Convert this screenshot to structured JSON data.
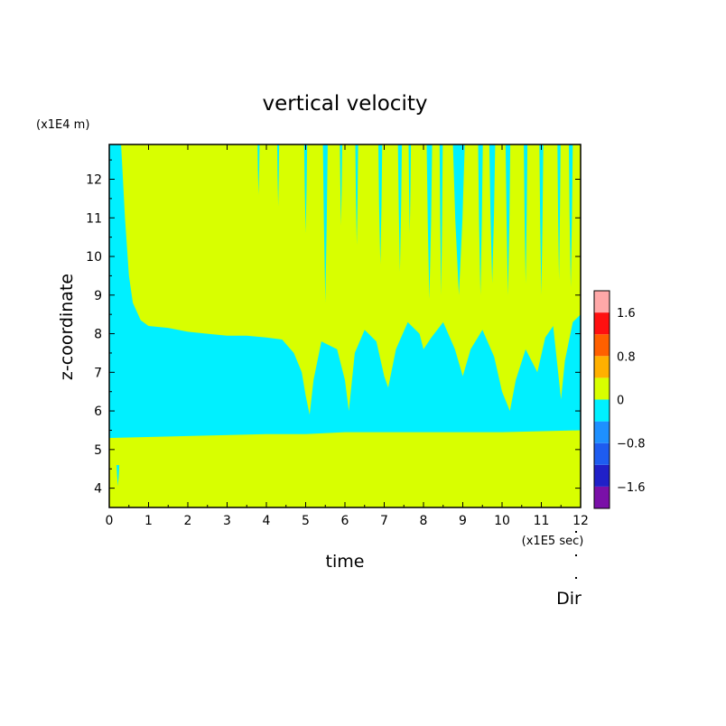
{
  "chart_data": {
    "type": "heatmap",
    "title": "vertical velocity",
    "xlabel": "time",
    "ylabel": "z-coordinate",
    "x_unit": "(x1E5 sec)",
    "y_unit": "(x1E4 m)",
    "footer_label": "Dir",
    "xlim": [
      0,
      12
    ],
    "ylim": [
      3.5,
      12.9
    ],
    "x_ticks": [
      "0",
      "1",
      "2",
      "3",
      "4",
      "5",
      "6",
      "7",
      "8",
      "9",
      "10",
      "11",
      "12"
    ],
    "y_ticks": [
      "4",
      "5",
      "6",
      "7",
      "8",
      "9",
      "10",
      "11",
      "12"
    ],
    "colorbar": {
      "range": [
        -2.0,
        2.0
      ],
      "step": 0.4,
      "colors": [
        "#7a10a8",
        "#2020c8",
        "#1e5cf0",
        "#1e90ff",
        "#00f0ff",
        "#d8ff00",
        "#ffb000",
        "#ff6000",
        "#ff1010",
        "#ffa8a8"
      ],
      "tick_labels": [
        {
          "value": 1.6,
          "label": "1.6"
        },
        {
          "value": 0.8,
          "label": "0.8"
        },
        {
          "value": 0,
          "label": "0"
        },
        {
          "value": -0.8,
          "label": "−0.8"
        },
        {
          "value": -1.6,
          "label": "−1.6"
        }
      ]
    },
    "field_colors": {
      "negative": "#00f0ff",
      "positive": "#d8ff00"
    },
    "regions": [
      {
        "name": "lower positive layer",
        "value_sign": "positive",
        "z_range": [
          3.5,
          5.4
        ],
        "t_range": [
          0,
          12
        ]
      },
      {
        "name": "mid-level negative layer",
        "value_sign": "negative",
        "z_range": [
          5.4,
          8.3
        ],
        "t_range": [
          0,
          12
        ]
      },
      {
        "name": "upper positive layer",
        "value_sign": "positive",
        "z_range": [
          8.3,
          12.9
        ],
        "t_range": [
          0.8,
          12
        ]
      },
      {
        "name": "early negative column",
        "value_sign": "negative",
        "z_range": [
          5.4,
          12.9
        ],
        "t_range": [
          0,
          0.8
        ]
      }
    ],
    "upper_boundary": [
      [
        0.0,
        12.9
      ],
      [
        0.3,
        12.9
      ],
      [
        0.4,
        11.0
      ],
      [
        0.5,
        9.5
      ],
      [
        0.6,
        8.8
      ],
      [
        0.8,
        8.35
      ],
      [
        1.0,
        8.2
      ],
      [
        1.5,
        8.15
      ],
      [
        2.0,
        8.05
      ],
      [
        2.5,
        8.0
      ],
      [
        3.0,
        7.95
      ],
      [
        3.5,
        7.95
      ],
      [
        4.0,
        7.9
      ],
      [
        4.4,
        7.85
      ],
      [
        4.7,
        7.5
      ],
      [
        4.9,
        7.0
      ],
      [
        5.0,
        6.4
      ],
      [
        5.1,
        5.9
      ],
      [
        5.2,
        6.8
      ],
      [
        5.4,
        7.8
      ],
      [
        5.8,
        7.6
      ],
      [
        6.0,
        6.8
      ],
      [
        6.1,
        6.0
      ],
      [
        6.25,
        7.5
      ],
      [
        6.5,
        8.1
      ],
      [
        6.8,
        7.8
      ],
      [
        7.0,
        6.9
      ],
      [
        7.1,
        6.6
      ],
      [
        7.3,
        7.6
      ],
      [
        7.6,
        8.3
      ],
      [
        7.9,
        8.0
      ],
      [
        8.0,
        7.6
      ],
      [
        8.2,
        7.9
      ],
      [
        8.5,
        8.3
      ],
      [
        8.8,
        7.6
      ],
      [
        9.0,
        6.9
      ],
      [
        9.2,
        7.6
      ],
      [
        9.5,
        8.1
      ],
      [
        9.8,
        7.4
      ],
      [
        10.0,
        6.5
      ],
      [
        10.2,
        6.0
      ],
      [
        10.35,
        6.8
      ],
      [
        10.6,
        7.6
      ],
      [
        10.9,
        7.0
      ],
      [
        11.1,
        7.9
      ],
      [
        11.3,
        8.2
      ],
      [
        11.5,
        6.3
      ],
      [
        11.6,
        7.3
      ],
      [
        11.8,
        8.3
      ],
      [
        12.0,
        8.5
      ]
    ],
    "lower_boundary": [
      [
        0.0,
        5.3
      ],
      [
        2.0,
        5.35
      ],
      [
        4.0,
        5.4
      ],
      [
        5.0,
        5.4
      ],
      [
        6.0,
        5.45
      ],
      [
        8.0,
        5.45
      ],
      [
        10.0,
        5.45
      ],
      [
        12.0,
        5.5
      ]
    ],
    "negative_streaks": [
      {
        "t": 0.22,
        "z": [
          4.05,
          4.6
        ],
        "w": 0.07
      },
      {
        "t": 3.8,
        "z": [
          11.6,
          12.9
        ],
        "w": 0.05
      },
      {
        "t": 4.3,
        "z": [
          11.3,
          12.9
        ],
        "w": 0.05
      },
      {
        "t": 5.0,
        "z": [
          10.6,
          12.9
        ],
        "w": 0.08
      },
      {
        "t": 5.5,
        "z": [
          8.8,
          12.9
        ],
        "w": 0.12
      },
      {
        "t": 5.9,
        "z": [
          10.8,
          12.9
        ],
        "w": 0.06
      },
      {
        "t": 6.3,
        "z": [
          10.3,
          12.9
        ],
        "w": 0.07
      },
      {
        "t": 6.9,
        "z": [
          9.8,
          12.9
        ],
        "w": 0.1
      },
      {
        "t": 7.4,
        "z": [
          9.6,
          12.9
        ],
        "w": 0.1
      },
      {
        "t": 7.65,
        "z": [
          10.6,
          12.9
        ],
        "w": 0.06
      },
      {
        "t": 8.15,
        "z": [
          8.9,
          12.9
        ],
        "w": 0.14
      },
      {
        "t": 8.45,
        "z": [
          9.0,
          12.9
        ],
        "w": 0.08
      },
      {
        "t": 8.9,
        "z": [
          9.0,
          12.9
        ],
        "w": 0.3
      },
      {
        "t": 9.45,
        "z": [
          9.0,
          12.9
        ],
        "w": 0.12
      },
      {
        "t": 9.75,
        "z": [
          9.3,
          12.9
        ],
        "w": 0.15
      },
      {
        "t": 10.15,
        "z": [
          9.0,
          12.9
        ],
        "w": 0.12
      },
      {
        "t": 10.6,
        "z": [
          9.3,
          12.9
        ],
        "w": 0.09
      },
      {
        "t": 11.0,
        "z": [
          9.0,
          12.9
        ],
        "w": 0.1
      },
      {
        "t": 11.45,
        "z": [
          9.4,
          12.9
        ],
        "w": 0.08
      },
      {
        "t": 11.75,
        "z": [
          9.2,
          12.9
        ],
        "w": 0.1
      }
    ]
  }
}
